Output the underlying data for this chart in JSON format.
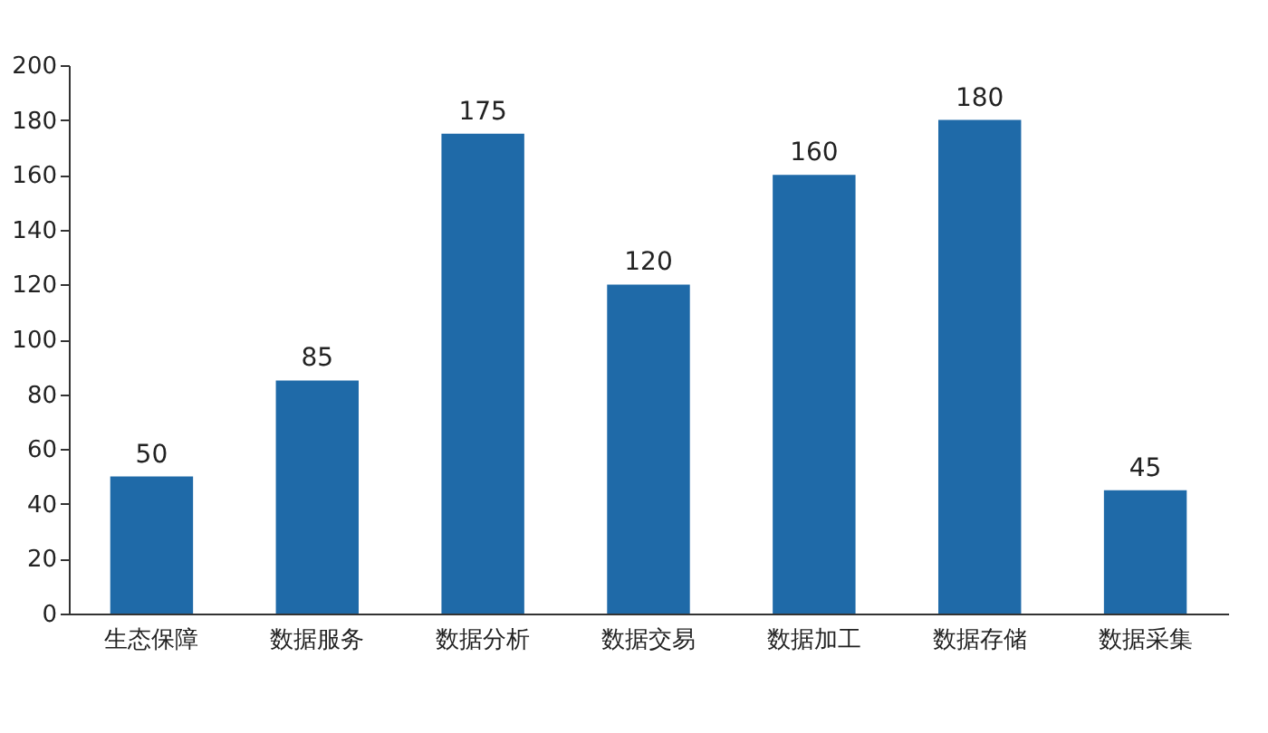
{
  "chart_data": {
    "type": "bar",
    "categories": [
      "生态保障",
      "数据服务",
      "数据分析",
      "数据交易",
      "数据加工",
      "数据存储",
      "数据采集"
    ],
    "values": [
      50,
      85,
      175,
      120,
      160,
      180,
      45
    ],
    "color": "#1f6aa8",
    "ylim": [
      0,
      200
    ],
    "yticks": [
      0,
      20,
      40,
      60,
      80,
      100,
      120,
      140,
      160,
      180,
      200
    ],
    "grid": false,
    "data_labels": true
  }
}
